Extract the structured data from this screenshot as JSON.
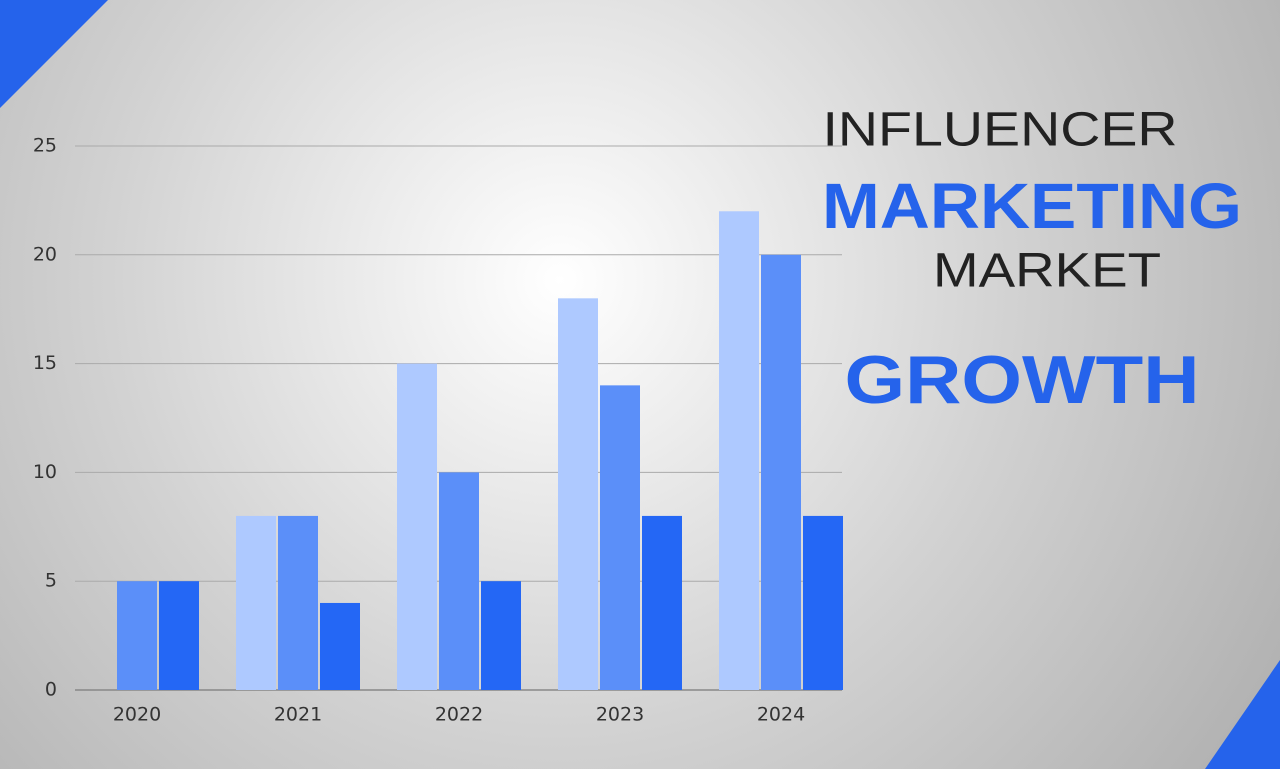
{
  "chart_data": {
    "type": "bar",
    "title_lines": [
      "INFLUENCER",
      "MARKETING",
      "MARKET",
      "GROWTH"
    ],
    "categories": [
      "2020",
      "2021",
      "2022",
      "2023",
      "2024"
    ],
    "series": [
      {
        "color": "#aec9ff",
        "values": [
          null,
          8,
          15,
          18,
          22
        ]
      },
      {
        "color": "#5b8ff9",
        "values": [
          5,
          8,
          10,
          14,
          20
        ]
      },
      {
        "color": "#2467f5",
        "values": [
          5,
          4,
          5,
          8,
          8
        ]
      }
    ],
    "ylim": [
      0,
      25
    ],
    "yticks": [
      0,
      5,
      10,
      15,
      20,
      25
    ],
    "grid": true
  }
}
